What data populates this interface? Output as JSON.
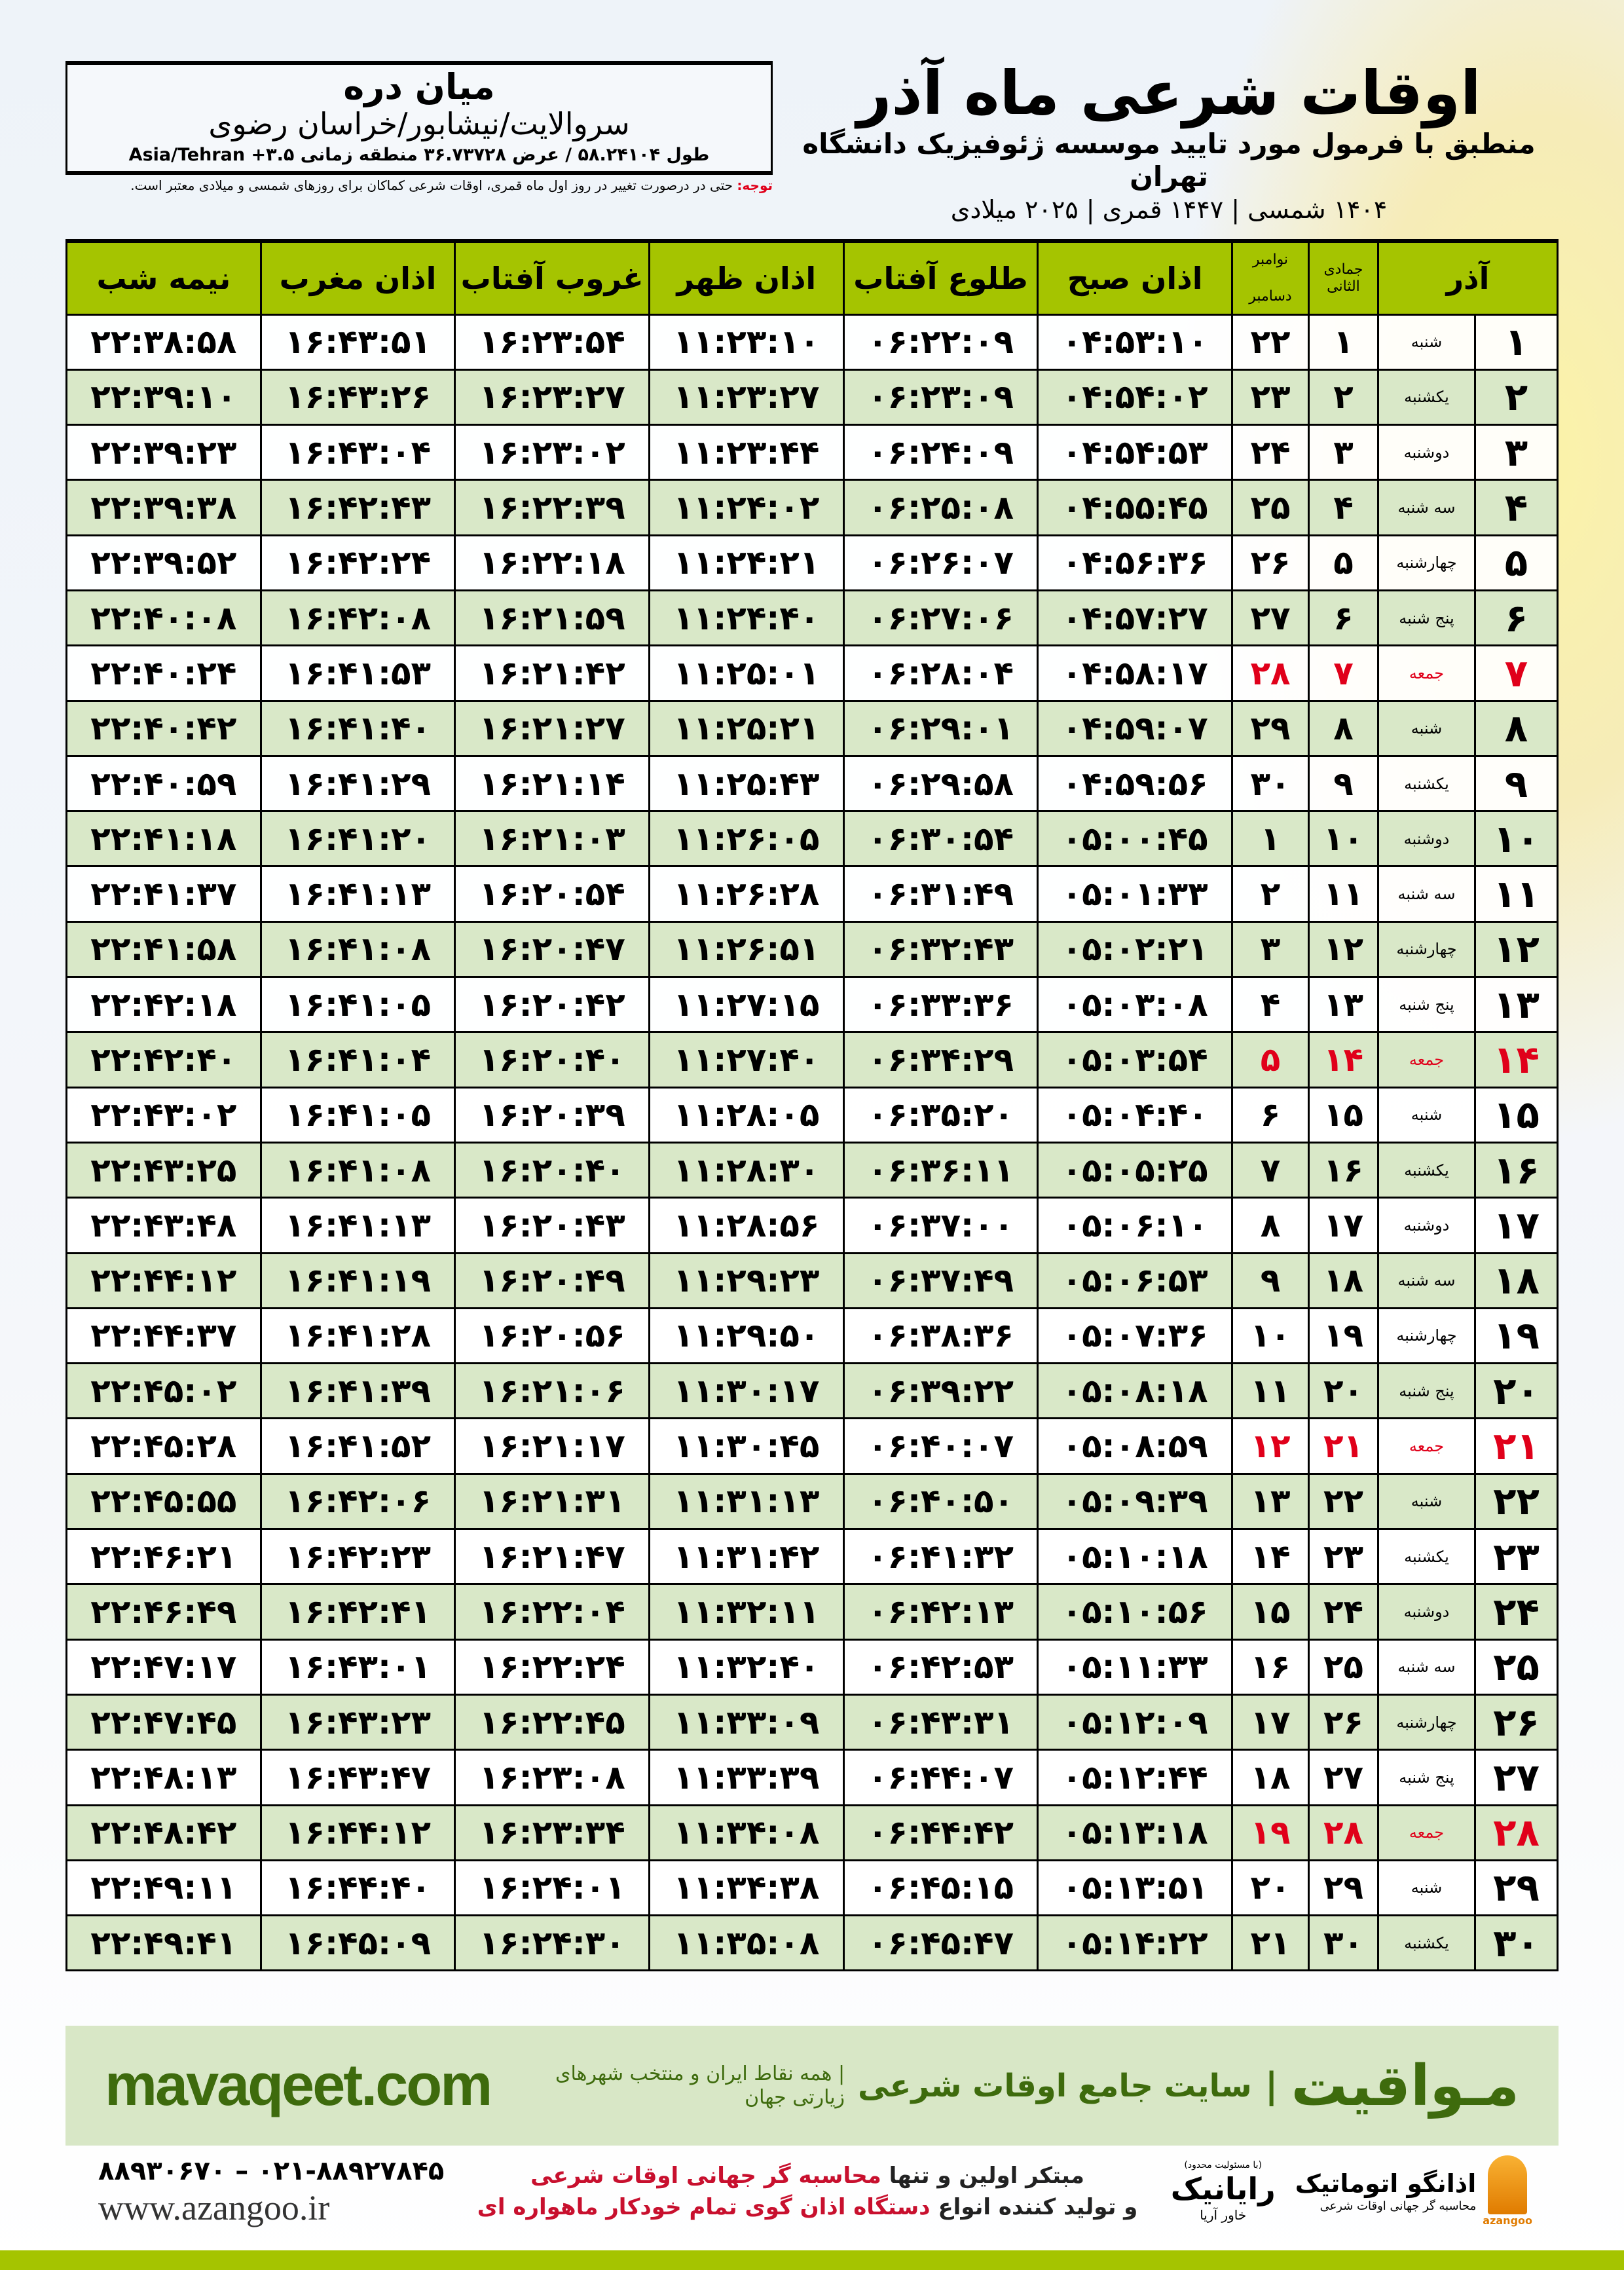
{
  "location": {
    "city": "میان دره",
    "path": "سروالایت/نیشابور/خراسان رضوی",
    "coords": "طول ۵۸.۲۴۱۰۴ / عرض ۳۶.۷۳۷۲۸ منطقه زمانی ۳.۵+ Asia/Tehran"
  },
  "header": {
    "title": "اوقات شرعی ماه آذر",
    "subtitle": "منطبق با فرمول مورد تایید موسسه ژئوفیزیک دانشگاه تهران",
    "dates": "۱۴۰۴ شمسی | ۱۴۴۷ قمری | ۲۰۲۵ میلادی"
  },
  "note": {
    "label": "توجه:",
    "text": " حتی در درصورت تغییر در روز اول ماه قمری، اوقات شرعی کماکان برای روزهای شمسی و میلادی معتبر است."
  },
  "table": {
    "headers": {
      "month": "آذر",
      "hijri": "جمادی الثانی",
      "greg_top": "نوامبر",
      "greg_bottom": "دسامبر",
      "fajr": "اذان صبح",
      "sunrise": "طلوع آفتاب",
      "dhuhr": "اذان ظهر",
      "sunset": "غروب آفتاب",
      "maghrib": "اذان مغرب",
      "midnight": "نیمه شب"
    },
    "holiday_color": "#e0001a",
    "rows": [
      {
        "day": "۱",
        "wd": "شنبه",
        "hj": "۱",
        "gr": "۲۲",
        "fajr": "۰۴:۵۳:۱۰",
        "sunrise": "۰۶:۲۲:۰۹",
        "dhuhr": "۱۱:۲۳:۱۰",
        "sunset": "۱۶:۲۳:۵۴",
        "maghrib": "۱۶:۴۳:۵۱",
        "midnight": "۲۲:۳۸:۵۸"
      },
      {
        "day": "۲",
        "wd": "یکشنبه",
        "hj": "۲",
        "gr": "۲۳",
        "fajr": "۰۴:۵۴:۰۲",
        "sunrise": "۰۶:۲۳:۰۹",
        "dhuhr": "۱۱:۲۳:۲۷",
        "sunset": "۱۶:۲۳:۲۷",
        "maghrib": "۱۶:۴۳:۲۶",
        "midnight": "۲۲:۳۹:۱۰"
      },
      {
        "day": "۳",
        "wd": "دوشنبه",
        "hj": "۳",
        "gr": "۲۴",
        "fajr": "۰۴:۵۴:۵۳",
        "sunrise": "۰۶:۲۴:۰۹",
        "dhuhr": "۱۱:۲۳:۴۴",
        "sunset": "۱۶:۲۳:۰۲",
        "maghrib": "۱۶:۴۳:۰۴",
        "midnight": "۲۲:۳۹:۲۳"
      },
      {
        "day": "۴",
        "wd": "سه شنبه",
        "hj": "۴",
        "gr": "۲۵",
        "fajr": "۰۴:۵۵:۴۵",
        "sunrise": "۰۶:۲۵:۰۸",
        "dhuhr": "۱۱:۲۴:۰۲",
        "sunset": "۱۶:۲۲:۳۹",
        "maghrib": "۱۶:۴۲:۴۳",
        "midnight": "۲۲:۳۹:۳۸"
      },
      {
        "day": "۵",
        "wd": "چهارشنبه",
        "hj": "۵",
        "gr": "۲۶",
        "fajr": "۰۴:۵۶:۳۶",
        "sunrise": "۰۶:۲۶:۰۷",
        "dhuhr": "۱۱:۲۴:۲۱",
        "sunset": "۱۶:۲۲:۱۸",
        "maghrib": "۱۶:۴۲:۲۴",
        "midnight": "۲۲:۳۹:۵۲"
      },
      {
        "day": "۶",
        "wd": "پنج شنبه",
        "hj": "۶",
        "gr": "۲۷",
        "fajr": "۰۴:۵۷:۲۷",
        "sunrise": "۰۶:۲۷:۰۶",
        "dhuhr": "۱۱:۲۴:۴۰",
        "sunset": "۱۶:۲۱:۵۹",
        "maghrib": "۱۶:۴۲:۰۸",
        "midnight": "۲۲:۴۰:۰۸"
      },
      {
        "day": "۷",
        "wd": "جمعه",
        "hj": "۷",
        "gr": "۲۸",
        "fajr": "۰۴:۵۸:۱۷",
        "sunrise": "۰۶:۲۸:۰۴",
        "dhuhr": "۱۱:۲۵:۰۱",
        "sunset": "۱۶:۲۱:۴۲",
        "maghrib": "۱۶:۴۱:۵۳",
        "midnight": "۲۲:۴۰:۲۴",
        "holiday": true
      },
      {
        "day": "۸",
        "wd": "شنبه",
        "hj": "۸",
        "gr": "۲۹",
        "fajr": "۰۴:۵۹:۰۷",
        "sunrise": "۰۶:۲۹:۰۱",
        "dhuhr": "۱۱:۲۵:۲۱",
        "sunset": "۱۶:۲۱:۲۷",
        "maghrib": "۱۶:۴۱:۴۰",
        "midnight": "۲۲:۴۰:۴۲"
      },
      {
        "day": "۹",
        "wd": "یکشنبه",
        "hj": "۹",
        "gr": "۳۰",
        "fajr": "۰۴:۵۹:۵۶",
        "sunrise": "۰۶:۲۹:۵۸",
        "dhuhr": "۱۱:۲۵:۴۳",
        "sunset": "۱۶:۲۱:۱۴",
        "maghrib": "۱۶:۴۱:۲۹",
        "midnight": "۲۲:۴۰:۵۹"
      },
      {
        "day": "۱۰",
        "wd": "دوشنبه",
        "hj": "۱۰",
        "gr": "۱",
        "fajr": "۰۵:۰۰:۴۵",
        "sunrise": "۰۶:۳۰:۵۴",
        "dhuhr": "۱۱:۲۶:۰۵",
        "sunset": "۱۶:۲۱:۰۳",
        "maghrib": "۱۶:۴۱:۲۰",
        "midnight": "۲۲:۴۱:۱۸"
      },
      {
        "day": "۱۱",
        "wd": "سه شنبه",
        "hj": "۱۱",
        "gr": "۲",
        "fajr": "۰۵:۰۱:۳۳",
        "sunrise": "۰۶:۳۱:۴۹",
        "dhuhr": "۱۱:۲۶:۲۸",
        "sunset": "۱۶:۲۰:۵۴",
        "maghrib": "۱۶:۴۱:۱۳",
        "midnight": "۲۲:۴۱:۳۷"
      },
      {
        "day": "۱۲",
        "wd": "چهارشنبه",
        "hj": "۱۲",
        "gr": "۳",
        "fajr": "۰۵:۰۲:۲۱",
        "sunrise": "۰۶:۳۲:۴۳",
        "dhuhr": "۱۱:۲۶:۵۱",
        "sunset": "۱۶:۲۰:۴۷",
        "maghrib": "۱۶:۴۱:۰۸",
        "midnight": "۲۲:۴۱:۵۸"
      },
      {
        "day": "۱۳",
        "wd": "پنج شنبه",
        "hj": "۱۳",
        "gr": "۴",
        "fajr": "۰۵:۰۳:۰۸",
        "sunrise": "۰۶:۳۳:۳۶",
        "dhuhr": "۱۱:۲۷:۱۵",
        "sunset": "۱۶:۲۰:۴۲",
        "maghrib": "۱۶:۴۱:۰۵",
        "midnight": "۲۲:۴۲:۱۸"
      },
      {
        "day": "۱۴",
        "wd": "جمعه",
        "hj": "۱۴",
        "gr": "۵",
        "fajr": "۰۵:۰۳:۵۴",
        "sunrise": "۰۶:۳۴:۲۹",
        "dhuhr": "۱۱:۲۷:۴۰",
        "sunset": "۱۶:۲۰:۴۰",
        "maghrib": "۱۶:۴۱:۰۴",
        "midnight": "۲۲:۴۲:۴۰",
        "holiday": true
      },
      {
        "day": "۱۵",
        "wd": "شنبه",
        "hj": "۱۵",
        "gr": "۶",
        "fajr": "۰۵:۰۴:۴۰",
        "sunrise": "۰۶:۳۵:۲۰",
        "dhuhr": "۱۱:۲۸:۰۵",
        "sunset": "۱۶:۲۰:۳۹",
        "maghrib": "۱۶:۴۱:۰۵",
        "midnight": "۲۲:۴۳:۰۲"
      },
      {
        "day": "۱۶",
        "wd": "یکشنبه",
        "hj": "۱۶",
        "gr": "۷",
        "fajr": "۰۵:۰۵:۲۵",
        "sunrise": "۰۶:۳۶:۱۱",
        "dhuhr": "۱۱:۲۸:۳۰",
        "sunset": "۱۶:۲۰:۴۰",
        "maghrib": "۱۶:۴۱:۰۸",
        "midnight": "۲۲:۴۳:۲۵"
      },
      {
        "day": "۱۷",
        "wd": "دوشنبه",
        "hj": "۱۷",
        "gr": "۸",
        "fajr": "۰۵:۰۶:۱۰",
        "sunrise": "۰۶:۳۷:۰۰",
        "dhuhr": "۱۱:۲۸:۵۶",
        "sunset": "۱۶:۲۰:۴۳",
        "maghrib": "۱۶:۴۱:۱۳",
        "midnight": "۲۲:۴۳:۴۸"
      },
      {
        "day": "۱۸",
        "wd": "سه شنبه",
        "hj": "۱۸",
        "gr": "۹",
        "fajr": "۰۵:۰۶:۵۳",
        "sunrise": "۰۶:۳۷:۴۹",
        "dhuhr": "۱۱:۲۹:۲۳",
        "sunset": "۱۶:۲۰:۴۹",
        "maghrib": "۱۶:۴۱:۱۹",
        "midnight": "۲۲:۴۴:۱۲"
      },
      {
        "day": "۱۹",
        "wd": "چهارشنبه",
        "hj": "۱۹",
        "gr": "۱۰",
        "fajr": "۰۵:۰۷:۳۶",
        "sunrise": "۰۶:۳۸:۳۶",
        "dhuhr": "۱۱:۲۹:۵۰",
        "sunset": "۱۶:۲۰:۵۶",
        "maghrib": "۱۶:۴۱:۲۸",
        "midnight": "۲۲:۴۴:۳۷"
      },
      {
        "day": "۲۰",
        "wd": "پنج شنبه",
        "hj": "۲۰",
        "gr": "۱۱",
        "fajr": "۰۵:۰۸:۱۸",
        "sunrise": "۰۶:۳۹:۲۲",
        "dhuhr": "۱۱:۳۰:۱۷",
        "sunset": "۱۶:۲۱:۰۶",
        "maghrib": "۱۶:۴۱:۳۹",
        "midnight": "۲۲:۴۵:۰۲"
      },
      {
        "day": "۲۱",
        "wd": "جمعه",
        "hj": "۲۱",
        "gr": "۱۲",
        "fajr": "۰۵:۰۸:۵۹",
        "sunrise": "۰۶:۴۰:۰۷",
        "dhuhr": "۱۱:۳۰:۴۵",
        "sunset": "۱۶:۲۱:۱۷",
        "maghrib": "۱۶:۴۱:۵۲",
        "midnight": "۲۲:۴۵:۲۸",
        "holiday": true
      },
      {
        "day": "۲۲",
        "wd": "شنبه",
        "hj": "۲۲",
        "gr": "۱۳",
        "fajr": "۰۵:۰۹:۳۹",
        "sunrise": "۰۶:۴۰:۵۰",
        "dhuhr": "۱۱:۳۱:۱۳",
        "sunset": "۱۶:۲۱:۳۱",
        "maghrib": "۱۶:۴۲:۰۶",
        "midnight": "۲۲:۴۵:۵۵"
      },
      {
        "day": "۲۳",
        "wd": "یکشنبه",
        "hj": "۲۳",
        "gr": "۱۴",
        "fajr": "۰۵:۱۰:۱۸",
        "sunrise": "۰۶:۴۱:۳۲",
        "dhuhr": "۱۱:۳۱:۴۲",
        "sunset": "۱۶:۲۱:۴۷",
        "maghrib": "۱۶:۴۲:۲۳",
        "midnight": "۲۲:۴۶:۲۱"
      },
      {
        "day": "۲۴",
        "wd": "دوشنبه",
        "hj": "۲۴",
        "gr": "۱۵",
        "fajr": "۰۵:۱۰:۵۶",
        "sunrise": "۰۶:۴۲:۱۳",
        "dhuhr": "۱۱:۳۲:۱۱",
        "sunset": "۱۶:۲۲:۰۴",
        "maghrib": "۱۶:۴۲:۴۱",
        "midnight": "۲۲:۴۶:۴۹"
      },
      {
        "day": "۲۵",
        "wd": "سه شنبه",
        "hj": "۲۵",
        "gr": "۱۶",
        "fajr": "۰۵:۱۱:۳۳",
        "sunrise": "۰۶:۴۲:۵۳",
        "dhuhr": "۱۱:۳۲:۴۰",
        "sunset": "۱۶:۲۲:۲۴",
        "maghrib": "۱۶:۴۳:۰۱",
        "midnight": "۲۲:۴۷:۱۷"
      },
      {
        "day": "۲۶",
        "wd": "چهارشنبه",
        "hj": "۲۶",
        "gr": "۱۷",
        "fajr": "۰۵:۱۲:۰۹",
        "sunrise": "۰۶:۴۳:۳۱",
        "dhuhr": "۱۱:۳۳:۰۹",
        "sunset": "۱۶:۲۲:۴۵",
        "maghrib": "۱۶:۴۳:۲۳",
        "midnight": "۲۲:۴۷:۴۵"
      },
      {
        "day": "۲۷",
        "wd": "پنج شنبه",
        "hj": "۲۷",
        "gr": "۱۸",
        "fajr": "۰۵:۱۲:۴۴",
        "sunrise": "۰۶:۴۴:۰۷",
        "dhuhr": "۱۱:۳۳:۳۹",
        "sunset": "۱۶:۲۳:۰۸",
        "maghrib": "۱۶:۴۳:۴۷",
        "midnight": "۲۲:۴۸:۱۳"
      },
      {
        "day": "۲۸",
        "wd": "جمعه",
        "hj": "۲۸",
        "gr": "۱۹",
        "fajr": "۰۵:۱۳:۱۸",
        "sunrise": "۰۶:۴۴:۴۲",
        "dhuhr": "۱۱:۳۴:۰۸",
        "sunset": "۱۶:۲۳:۳۴",
        "maghrib": "۱۶:۴۴:۱۲",
        "midnight": "۲۲:۴۸:۴۲",
        "holiday": true
      },
      {
        "day": "۲۹",
        "wd": "شنبه",
        "hj": "۲۹",
        "gr": "۲۰",
        "fajr": "۰۵:۱۳:۵۱",
        "sunrise": "۰۶:۴۵:۱۵",
        "dhuhr": "۱۱:۳۴:۳۸",
        "sunset": "۱۶:۲۴:۰۱",
        "maghrib": "۱۶:۴۴:۴۰",
        "midnight": "۲۲:۴۹:۱۱"
      },
      {
        "day": "۳۰",
        "wd": "یکشنبه",
        "hj": "۳۰",
        "gr": "۲۱",
        "fajr": "۰۵:۱۴:۲۲",
        "sunrise": "۰۶:۴۵:۴۷",
        "dhuhr": "۱۱:۳۵:۰۸",
        "sunset": "۱۶:۲۴:۳۰",
        "maghrib": "۱۶:۴۵:۰۹",
        "midnight": "۲۲:۴۹:۴۱"
      }
    ]
  },
  "banner": {
    "brand": "مـواقیت",
    "separator": "|",
    "tagline": "سایت جامع اوقات شرعی",
    "sub": "| همه نقاط ایران و منتخب شهرهای زیارتی جهان",
    "url": "mavaqeet.com",
    "color": "#3e6b0d"
  },
  "footer": {
    "phone": "۰۲۱-۸۸۹۲۷۸۴۵ – ۸۸۹۳۰۶۷۰",
    "website": "www.azangoo.ir",
    "promo_line1_a": "مبتکر اولین و تنها ",
    "promo_line1_b": "محاسبه گر جهانی اوقات شرعی",
    "promo_line2_a": "و تولید کننده انواع ",
    "promo_line2_b": "دستگاه اذان گوی تمام خودکار ماهواره ای",
    "logo_rayanik": {
      "small": "(با مسئولیت محدود)",
      "name": "رایانیک",
      "sub": "خاور آریا"
    },
    "logo_azangoo": {
      "name": "اذانگو اتوماتیک",
      "sub": "محاسبه گر جهانی اوقات شرعی",
      "en": "azangoo"
    }
  }
}
